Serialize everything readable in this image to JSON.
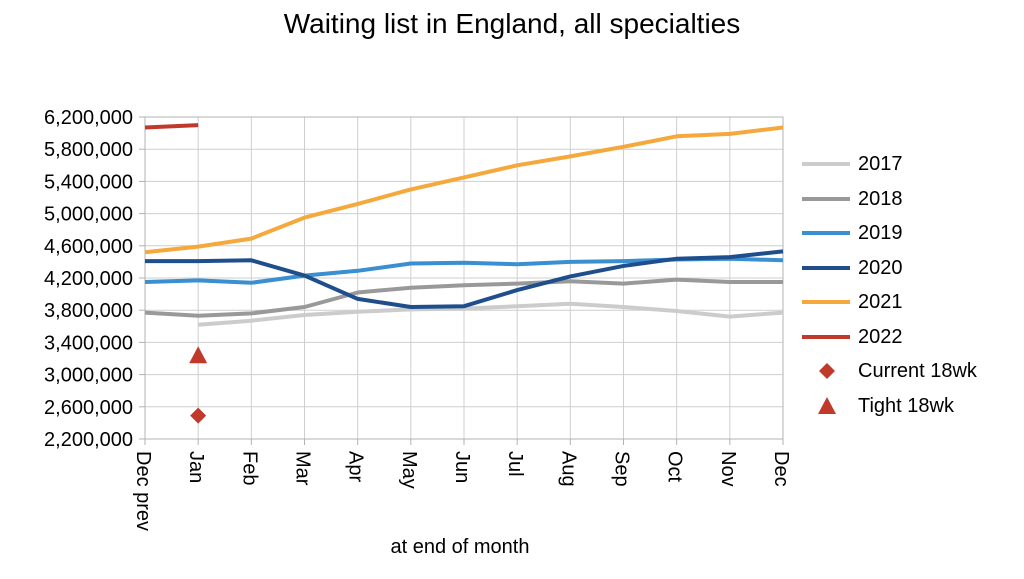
{
  "chart_data": {
    "type": "line",
    "title": "Waiting list in England, all specialties",
    "xlabel": "at end of month",
    "ylabel": "",
    "categories": [
      "Dec prev",
      "Jan",
      "Feb",
      "Mar",
      "Apr",
      "May",
      "Jun",
      "Jul",
      "Aug",
      "Sep",
      "Oct",
      "Nov",
      "Dec"
    ],
    "ylim": [
      2200000,
      6200000
    ],
    "yticks": [
      2200000,
      2600000,
      3000000,
      3400000,
      3800000,
      4200000,
      4600000,
      5000000,
      5400000,
      5800000,
      6200000
    ],
    "ytick_labels": [
      "2,200,000",
      "2,600,000",
      "3,000,000",
      "3,400,000",
      "3,800,000",
      "4,200,000",
      "4,600,000",
      "5,000,000",
      "5,400,000",
      "5,800,000",
      "6,200,000"
    ],
    "grid": true,
    "legend_position": "right",
    "series": [
      {
        "name": "2017",
        "color": "#cccccc",
        "marker": "none",
        "values": [
          null,
          3620000,
          3670000,
          3740000,
          3780000,
          3810000,
          3820000,
          3850000,
          3880000,
          3840000,
          3790000,
          3720000,
          3770000
        ]
      },
      {
        "name": "2018",
        "color": "#999999",
        "marker": "none",
        "values": [
          3770000,
          3730000,
          3760000,
          3840000,
          4020000,
          4080000,
          4110000,
          4130000,
          4160000,
          4130000,
          4180000,
          4150000,
          4150000
        ]
      },
      {
        "name": "2019",
        "color": "#3a8fd1",
        "marker": "none",
        "values": [
          4150000,
          4170000,
          4140000,
          4230000,
          4290000,
          4380000,
          4390000,
          4370000,
          4400000,
          4410000,
          4430000,
          4440000,
          4420000
        ]
      },
      {
        "name": "2020",
        "color": "#1f4e8c",
        "marker": "none",
        "values": [
          4410000,
          4410000,
          4420000,
          4230000,
          3940000,
          3840000,
          3850000,
          4050000,
          4220000,
          4350000,
          4440000,
          4460000,
          4530000
        ]
      },
      {
        "name": "2021",
        "color": "#f5a83c",
        "marker": "none",
        "values": [
          4520000,
          4590000,
          4690000,
          4950000,
          5120000,
          5300000,
          5450000,
          5600000,
          5710000,
          5830000,
          5960000,
          5990000,
          6070000
        ]
      },
      {
        "name": "2022",
        "color": "#c0392b",
        "marker": "none",
        "values": [
          6070000,
          6100000,
          null,
          null,
          null,
          null,
          null,
          null,
          null,
          null,
          null,
          null,
          null
        ]
      },
      {
        "name": "Current 18wk",
        "color": "#c0392b",
        "marker": "diamond",
        "values": [
          null,
          2490000,
          null,
          null,
          null,
          null,
          null,
          null,
          null,
          null,
          null,
          null,
          null
        ]
      },
      {
        "name": "Tight 18wk",
        "color": "#c0392b",
        "marker": "triangle",
        "values": [
          null,
          3240000,
          null,
          null,
          null,
          null,
          null,
          null,
          null,
          null,
          null,
          null,
          null
        ]
      }
    ]
  }
}
